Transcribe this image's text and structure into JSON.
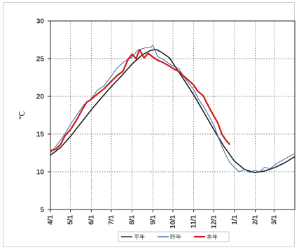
{
  "chart_data": {
    "type": "line",
    "ylabel": "℃",
    "ylim": [
      5,
      30
    ],
    "yticks": [
      5,
      10,
      15,
      20,
      25,
      30
    ],
    "x_categories": [
      "4/1",
      "5/1",
      "6/1",
      "7/1",
      "8/1",
      "9/1",
      "10/1",
      "11/1",
      "12/1",
      "1/1",
      "2/1",
      "3/1"
    ],
    "x_range_days": [
      0,
      365
    ],
    "grid": true,
    "legend_position": "bottom",
    "series": [
      {
        "name": "平年",
        "color": "#1f1f1f",
        "x": [
          0,
          15,
          30,
          45,
          61,
          76,
          91,
          106,
          122,
          137,
          150,
          158,
          165,
          178,
          183,
          198,
          214,
          229,
          244,
          259,
          275,
          290,
          305,
          320,
          336,
          350,
          365
        ],
        "y": [
          12.2,
          13.2,
          14.7,
          16.4,
          18.2,
          19.8,
          21.3,
          22.7,
          24.3,
          25.5,
          26.1,
          26.2,
          25.9,
          25.1,
          24.4,
          22.4,
          20.2,
          17.9,
          15.6,
          13.4,
          11.4,
          10.3,
          9.9,
          10.1,
          10.6,
          11.2,
          12.0
        ]
      },
      {
        "name": "昨年",
        "color": "#3a6aa8",
        "x": [
          0,
          10,
          20,
          30,
          40,
          50,
          61,
          70,
          80,
          91,
          100,
          110,
          122,
          130,
          140,
          150,
          153,
          160,
          170,
          183,
          192,
          200,
          214,
          222,
          230,
          244,
          250,
          256,
          262,
          268,
          275,
          282,
          290,
          298,
          305,
          312,
          320,
          328,
          336,
          344,
          352,
          358,
          365
        ],
        "y": [
          12.5,
          13.6,
          14.8,
          16.3,
          17.6,
          18.9,
          19.7,
          20.8,
          21.4,
          22.7,
          23.8,
          24.6,
          25.2,
          26.1,
          26.4,
          26.5,
          26.8,
          25.3,
          24.8,
          24.0,
          23.7,
          22.5,
          20.9,
          19.5,
          18.5,
          16.2,
          14.8,
          13.4,
          12.2,
          11.2,
          10.6,
          10.0,
          10.3,
          9.9,
          10.2,
          10.0,
          10.6,
          10.4,
          11.0,
          11.4,
          11.8,
          12.1,
          12.4
        ]
      },
      {
        "name": "本年",
        "color": "#d11a1a",
        "x": [
          0,
          8,
          15,
          22,
          30,
          38,
          46,
          54,
          61,
          70,
          80,
          91,
          100,
          108,
          116,
          122,
          128,
          133,
          140,
          146,
          153,
          160,
          168,
          176,
          183,
          192,
          200,
          208,
          214,
          220,
          228,
          236,
          244,
          250,
          256,
          262,
          268
        ],
        "y": [
          12.8,
          13.0,
          13.6,
          14.8,
          15.6,
          16.7,
          18.0,
          19.2,
          19.6,
          20.3,
          21.0,
          22.0,
          22.8,
          23.3,
          24.9,
          25.6,
          25.0,
          26.2,
          25.1,
          25.7,
          25.2,
          24.8,
          24.5,
          24.1,
          23.7,
          23.3,
          22.6,
          22.0,
          21.5,
          20.7,
          20.1,
          18.7,
          17.4,
          16.5,
          15.0,
          14.2,
          13.6
        ]
      }
    ]
  }
}
